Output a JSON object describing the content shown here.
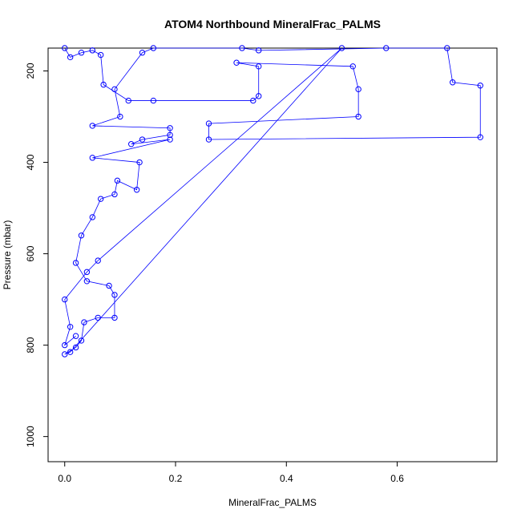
{
  "chart_data": {
    "type": "scatter",
    "title": "ATOM4 Northbound MineralFrac_PALMS",
    "xlabel": "MineralFrac_PALMS",
    "ylabel": "Pressure (mbar)",
    "xlim": [
      -0.03,
      0.78
    ],
    "ylim": [
      1055,
      150
    ],
    "y_reversed": true,
    "x_ticks": [
      0.0,
      0.2,
      0.4,
      0.6
    ],
    "x_tick_labels": [
      "0.0",
      "0.2",
      "0.4",
      "0.6"
    ],
    "y_ticks": [
      200,
      400,
      600,
      800,
      1000
    ],
    "y_tick_labels": [
      "200",
      "400",
      "600",
      "800",
      "1000"
    ],
    "color": "#0000ff",
    "marker": "open-circle",
    "connected": true,
    "grid": false,
    "legend": "none",
    "series": [
      {
        "points": [
          [
            0.0,
            150
          ],
          [
            0.01,
            170
          ],
          [
            0.03,
            160
          ],
          [
            0.05,
            155
          ],
          [
            0.065,
            165
          ],
          [
            0.07,
            230
          ],
          [
            0.115,
            265
          ],
          [
            0.16,
            265
          ],
          [
            0.34,
            265
          ],
          [
            0.35,
            255
          ],
          [
            0.35,
            190
          ],
          [
            0.31,
            182
          ],
          [
            0.52,
            190
          ],
          [
            0.53,
            240
          ],
          [
            0.53,
            300
          ],
          [
            0.26,
            315
          ],
          [
            0.26,
            350
          ],
          [
            0.75,
            345
          ],
          [
            0.75,
            232
          ],
          [
            0.7,
            225
          ],
          [
            0.69,
            150
          ],
          [
            0.58,
            150
          ],
          [
            0.35,
            155
          ],
          [
            0.32,
            150
          ],
          [
            0.16,
            150
          ],
          [
            0.14,
            160
          ],
          [
            0.09,
            240
          ],
          [
            0.1,
            300
          ],
          [
            0.05,
            320
          ],
          [
            0.19,
            325
          ],
          [
            0.19,
            340
          ],
          [
            0.14,
            350
          ],
          [
            0.12,
            360
          ],
          [
            0.19,
            350
          ],
          [
            0.05,
            390
          ],
          [
            0.135,
            400
          ],
          [
            0.13,
            460
          ],
          [
            0.095,
            440
          ],
          [
            0.09,
            470
          ],
          [
            0.065,
            480
          ],
          [
            0.05,
            520
          ],
          [
            0.03,
            560
          ],
          [
            0.02,
            620
          ],
          [
            0.04,
            660
          ],
          [
            0.08,
            670
          ],
          [
            0.09,
            690
          ],
          [
            0.09,
            740
          ],
          [
            0.06,
            740
          ],
          [
            0.035,
            750
          ],
          [
            0.03,
            790
          ],
          [
            0.02,
            805
          ],
          [
            0.0,
            820
          ],
          [
            0.01,
            815
          ],
          [
            0.5,
            150
          ],
          [
            0.06,
            615
          ],
          [
            0.04,
            640
          ],
          [
            0.0,
            700
          ],
          [
            0.01,
            760
          ],
          [
            0.0,
            800
          ],
          [
            0.02,
            780
          ]
        ]
      }
    ]
  }
}
